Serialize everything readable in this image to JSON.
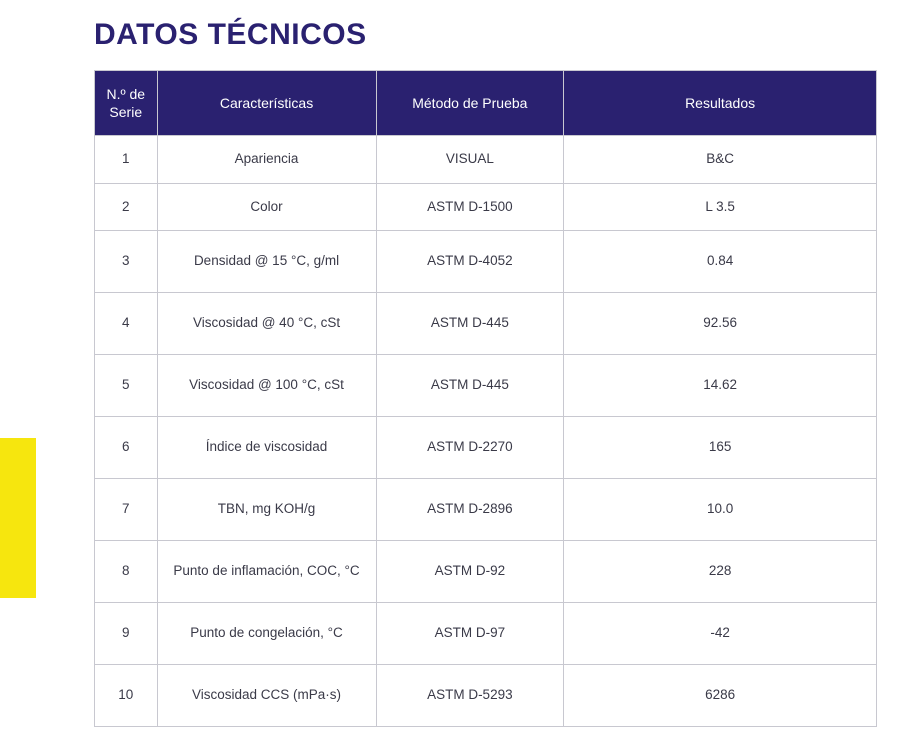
{
  "title": "DATOS TÉCNICOS",
  "table": {
    "columns": [
      "N.º de Serie",
      "Características",
      "Método de Prueba",
      "Resultados"
    ],
    "rows": [
      {
        "serie": "1",
        "car": "Apariencia",
        "met": "VISUAL",
        "res": "B&C",
        "tall": false
      },
      {
        "serie": "2",
        "car": "Color",
        "met": "ASTM D-1500",
        "res": "L 3.5",
        "tall": false
      },
      {
        "serie": "3",
        "car": "Densidad @ 15 °C, g/ml",
        "met": "ASTM D-4052",
        "res": "0.84",
        "tall": true
      },
      {
        "serie": "4",
        "car": "Viscosidad @ 40 °C, cSt",
        "met": "ASTM D-445",
        "res": "92.56",
        "tall": true
      },
      {
        "serie": "5",
        "car": "Viscosidad @ 100 °C, cSt",
        "met": "ASTM D-445",
        "res": "14.62",
        "tall": true
      },
      {
        "serie": "6",
        "car": "Índice de viscosidad",
        "met": "ASTM D-2270",
        "res": "165",
        "tall": true
      },
      {
        "serie": "7",
        "car": "TBN, mg KOH/g",
        "met": "ASTM D-2896",
        "res": "10.0",
        "tall": true
      },
      {
        "serie": "8",
        "car": "Punto de inflamación, COC, °C",
        "met": "ASTM D-92",
        "res": "228",
        "tall": true
      },
      {
        "serie": "9",
        "car": "Punto de congelación, °C",
        "met": "ASTM D-97",
        "res": "-42",
        "tall": true
      },
      {
        "serie": "10",
        "car": "Viscosidad CCS (mPa·s)",
        "met": "ASTM D-5293",
        "res": "6286",
        "tall": true
      }
    ],
    "header_bg": "#2a2170",
    "header_text_color": "#ffffff",
    "cell_text_color": "#3a3a48",
    "border_color": "#c8c8d0"
  },
  "accent": {
    "yellow": "#f6e60e"
  }
}
